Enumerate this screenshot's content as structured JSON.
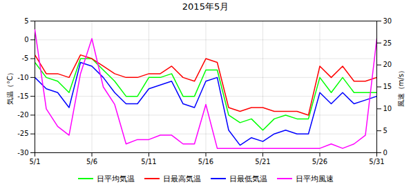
{
  "chart_data": {
    "type": "line",
    "title": "2015年5月",
    "x": [
      1,
      2,
      3,
      4,
      5,
      6,
      7,
      8,
      9,
      10,
      11,
      12,
      13,
      14,
      15,
      16,
      17,
      18,
      19,
      20,
      21,
      22,
      23,
      24,
      25,
      26,
      27,
      28,
      29,
      30,
      31
    ],
    "xlim": [
      1,
      31
    ],
    "xticks": [
      {
        "value": 1,
        "label": "5/1"
      },
      {
        "value": 6,
        "label": "5/6"
      },
      {
        "value": 11,
        "label": "5/11"
      },
      {
        "value": 16,
        "label": "5/16"
      },
      {
        "value": 21,
        "label": "5/21"
      },
      {
        "value": 26,
        "label": "5/26"
      },
      {
        "value": 31,
        "label": "5/31"
      }
    ],
    "ylabel": "気温（°C）",
    "y2label": "風速（m/s）",
    "ylim": [
      -30,
      5
    ],
    "yticks": [
      -30,
      -25,
      -20,
      -15,
      -10,
      -5,
      0,
      5
    ],
    "y2lim": [
      0,
      30
    ],
    "y2ticks": [
      0,
      5,
      10,
      15,
      20,
      25,
      30
    ],
    "grid": true,
    "legend": "bottom",
    "series": [
      {
        "name": "日平均気温",
        "color": "#00ff00",
        "values": [
          -6,
          -10,
          -11,
          -14,
          -5,
          -5,
          -8,
          -11,
          -15,
          -15,
          -10,
          -10,
          -9,
          -15,
          -15,
          -8,
          -8,
          -20,
          -22,
          -21,
          -24,
          -21,
          -20,
          -21,
          -21,
          -10,
          -14,
          -10,
          -14,
          -14,
          -14
        ]
      },
      {
        "name": "日最高気温",
        "color": "#ff0000",
        "values": [
          -4,
          -9,
          -9,
          -10,
          -4,
          -5,
          -7,
          -9,
          -10,
          -10,
          -9,
          -9,
          -7,
          -10,
          -11,
          -5,
          -6,
          -18,
          -19,
          -18,
          -18,
          -19,
          -19,
          -19,
          -20,
          -7,
          -10,
          -7,
          -11,
          -11,
          -10
        ]
      },
      {
        "name": "日最低気温",
        "color": "#0000ff",
        "values": [
          -10,
          -13,
          -14,
          -18,
          -6,
          -7,
          -10,
          -14,
          -17,
          -17,
          -13,
          -12,
          -11,
          -17,
          -18,
          -11,
          -10,
          -24,
          -28,
          -26,
          -27,
          -25,
          -24,
          -25,
          -25,
          -14,
          -17,
          -14,
          -17,
          -16,
          -15
        ]
      },
      {
        "name": "日平均風速",
        "color": "#ff00ff",
        "axis": "y2",
        "values": [
          28,
          10,
          6,
          4,
          18,
          26,
          15,
          11,
          2,
          3,
          3,
          4,
          4,
          2,
          2,
          11,
          1,
          1,
          1,
          1,
          1,
          1,
          1,
          1,
          1,
          1,
          2,
          1,
          2,
          4,
          26
        ]
      }
    ]
  }
}
